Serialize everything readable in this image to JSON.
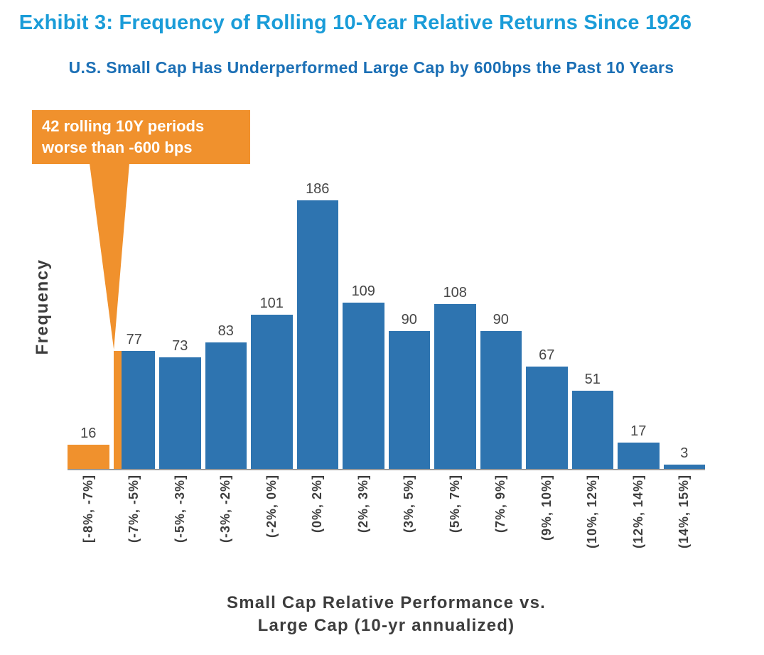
{
  "header": {
    "title": "Exhibit 3: Frequency of Rolling 10-Year Relative Returns Since 1926",
    "subtitle": "U.S. Small Cap Has Underperformed Large Cap by 600bps the Past 10 Years"
  },
  "callout": {
    "line1": "42 rolling 10Y periods",
    "line2": "worse than -600 bps"
  },
  "colors": {
    "title": "#1A9CD8",
    "subtitle": "#1B6FB5",
    "bar": "#2E74B0",
    "highlight": "#F0912D",
    "value_label": "#474747",
    "axis_line": "#9B9B9B",
    "axis_text": "#3D3D3D"
  },
  "chart_data": {
    "type": "bar",
    "title": "Exhibit 3: Frequency of Rolling 10-Year Relative Returns Since 1926",
    "subtitle": "U.S. Small Cap Has Underperformed Large Cap by 600bps the Past 10 Years",
    "categories": [
      "[-8%, -7%]",
      "(-7%, -5%]",
      "(-5%, -3%]",
      "(-3%, -2%]",
      "(-2%, 0%]",
      "(0%, 2%]",
      "(2%, 3%]",
      "(3%, 5%]",
      "(5%, 7%]",
      "(7%, 9%]",
      "(9%, 10%]",
      "(10%, 12%]",
      "(12%, 14%]",
      "(14%, 15%]"
    ],
    "values": [
      16,
      77,
      73,
      83,
      101,
      186,
      109,
      90,
      108,
      90,
      67,
      51,
      17,
      3
    ],
    "highlight_full_bars": [
      0
    ],
    "partial_highlight_bar": 1,
    "annotation": "42 rolling 10Y periods worse than -600 bps",
    "xlabel_line1": "Small Cap Relative Performance vs.",
    "xlabel_line2": "Large Cap (10-yr annualized)",
    "ylabel": "Frequency",
    "ylim": [
      0,
      200
    ],
    "grid": false,
    "legend": false
  }
}
